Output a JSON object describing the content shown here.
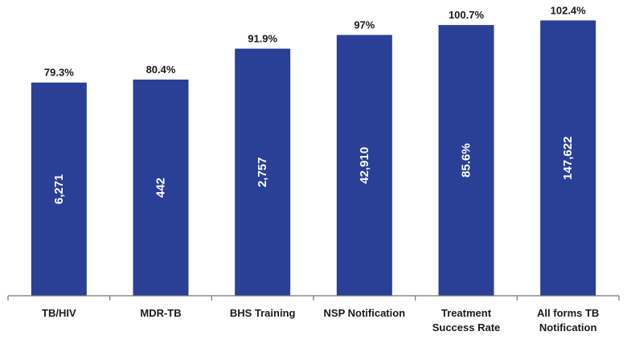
{
  "chart_data": {
    "type": "bar",
    "categories": [
      [
        "TB/HIV"
      ],
      [
        "MDR-TB"
      ],
      [
        "BHS Training"
      ],
      [
        "NSP Notification"
      ],
      [
        "Treatment",
        "Success Rate"
      ],
      [
        "All forms TB",
        "Notification"
      ]
    ],
    "values": [
      79.3,
      80.4,
      91.9,
      97,
      100.7,
      102.4
    ],
    "value_labels": [
      "79.3%",
      "80.4%",
      "91.9%",
      "97%",
      "100.7%",
      "102.4%"
    ],
    "bar_labels": [
      "6,271",
      "442",
      "2,757",
      "42,910",
      "85.6%",
      "147,622"
    ],
    "bar_color": "#2a3f96",
    "ylim": [
      0,
      110
    ],
    "grid": false,
    "legend": "none"
  }
}
